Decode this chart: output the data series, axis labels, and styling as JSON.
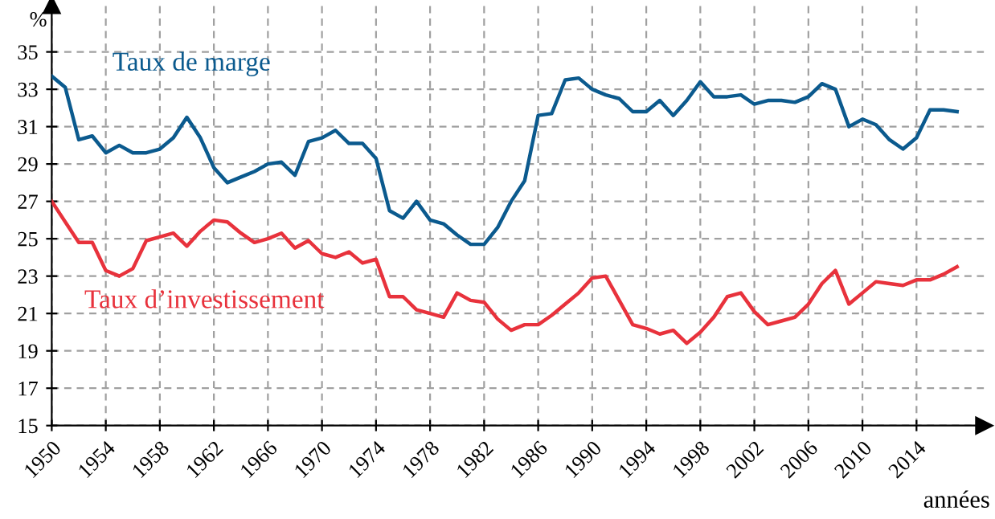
{
  "chart_data": {
    "type": "line",
    "xlabel": "années",
    "ylabel": "%",
    "x": [
      1950,
      1951,
      1952,
      1953,
      1954,
      1955,
      1956,
      1957,
      1958,
      1959,
      1960,
      1961,
      1962,
      1963,
      1964,
      1965,
      1966,
      1967,
      1968,
      1969,
      1970,
      1971,
      1972,
      1973,
      1974,
      1975,
      1976,
      1977,
      1978,
      1979,
      1980,
      1981,
      1982,
      1983,
      1984,
      1985,
      1986,
      1987,
      1988,
      1989,
      1990,
      1991,
      1992,
      1993,
      1994,
      1995,
      1996,
      1997,
      1998,
      1999,
      2000,
      2001,
      2002,
      2003,
      2004,
      2005,
      2006,
      2007,
      2008,
      2009,
      2010,
      2011,
      2012,
      2013,
      2014,
      2015,
      2016,
      2017
    ],
    "series": [
      {
        "name": "Taux de marge",
        "color": "#0b5a8e",
        "values": [
          33.7,
          33.1,
          30.3,
          30.5,
          29.6,
          30.0,
          29.6,
          29.6,
          29.8,
          30.4,
          31.5,
          30.4,
          28.8,
          28.0,
          28.3,
          28.6,
          29.0,
          29.1,
          28.4,
          30.2,
          30.4,
          30.8,
          30.1,
          30.1,
          29.3,
          26.5,
          26.1,
          27.0,
          26.0,
          25.8,
          25.2,
          24.7,
          24.7,
          25.6,
          27.0,
          28.1,
          31.6,
          31.7,
          33.5,
          33.6,
          33.0,
          32.7,
          32.5,
          31.8,
          31.8,
          32.4,
          31.6,
          32.4,
          33.4,
          32.6,
          32.6,
          32.7,
          32.2,
          32.4,
          32.4,
          32.3,
          32.6,
          33.3,
          33.0,
          31.0,
          31.4,
          31.1,
          30.3,
          29.8,
          30.4,
          31.9,
          31.9,
          31.8
        ]
      },
      {
        "name": "Taux d’investissement",
        "color": "#e8323c",
        "values": [
          27.0,
          25.9,
          24.8,
          24.8,
          23.3,
          23.0,
          23.4,
          24.9,
          25.1,
          25.3,
          24.6,
          25.4,
          26.0,
          25.9,
          25.3,
          24.8,
          25.0,
          25.3,
          24.5,
          24.9,
          24.2,
          24.0,
          24.3,
          23.7,
          23.9,
          21.9,
          21.9,
          21.2,
          21.0,
          20.8,
          22.1,
          21.7,
          21.6,
          20.7,
          20.1,
          20.4,
          20.4,
          20.9,
          21.5,
          22.1,
          22.9,
          23.0,
          21.7,
          20.4,
          20.2,
          19.9,
          20.1,
          19.4,
          20.0,
          20.8,
          21.9,
          22.1,
          21.1,
          20.4,
          20.6,
          20.8,
          21.5,
          22.6,
          23.3,
          21.5,
          22.1,
          22.7,
          22.6,
          22.5,
          22.8,
          22.8,
          23.1,
          23.5
        ]
      }
    ],
    "xlim": [
      1950,
      2019
    ],
    "ylim": [
      15,
      37.5
    ],
    "xticks": [
      1950,
      1954,
      1958,
      1962,
      1966,
      1970,
      1974,
      1978,
      1982,
      1986,
      1990,
      1994,
      1998,
      2002,
      2006,
      2010,
      2014
    ],
    "yticks": [
      15,
      17,
      19,
      21,
      23,
      25,
      27,
      29,
      31,
      33,
      35
    ],
    "grid": true,
    "legend": false,
    "marker": "none",
    "line_style": "solid"
  }
}
